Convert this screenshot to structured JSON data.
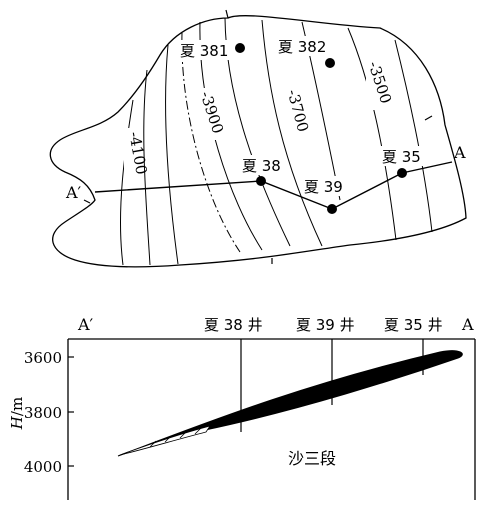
{
  "map": {
    "contours": [
      "-4100",
      "-3900",
      "-3700",
      "-3500"
    ],
    "wells": [
      "夏 381",
      "夏 382",
      "夏 38",
      "夏 39",
      "夏 35"
    ],
    "section_start": "A′",
    "section_end": "A"
  },
  "section": {
    "left_label": "A′",
    "right_label": "A",
    "well_labels": [
      "夏 38 井",
      "夏 39 井",
      "夏 35 井"
    ],
    "ylabel": "H/m",
    "ylabel_italic": "H",
    "ylabel_unit": "/m",
    "y_ticks": [
      "3600",
      "3800",
      "4000"
    ],
    "formation": "沙三段"
  }
}
